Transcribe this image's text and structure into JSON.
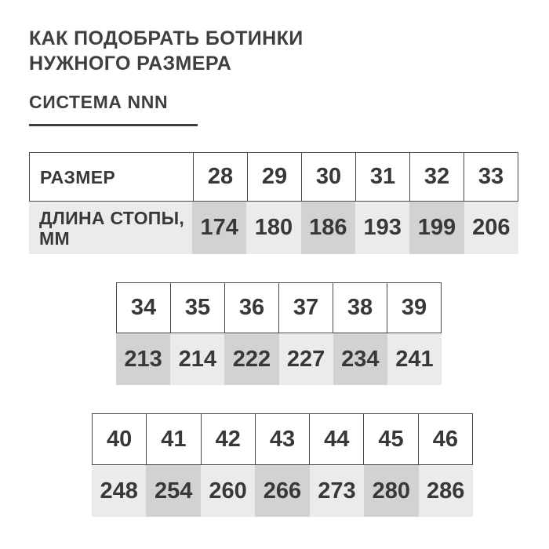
{
  "page": {
    "title_line1": "КАК ПОДОБРАТЬ БОТИНКИ",
    "title_line2": "НУЖНОГО РАЗМЕРА",
    "subtitle": "СИСТЕМА NNN"
  },
  "labels": {
    "size": "РАЗМЕР",
    "foot_length": "ДЛИНА СТОПЫ, ММ"
  },
  "tables": [
    {
      "sizes": [
        "28",
        "29",
        "30",
        "31",
        "32",
        "33"
      ],
      "lengths": [
        "174",
        "180",
        "186",
        "193",
        "199",
        "206"
      ]
    },
    {
      "sizes": [
        "34",
        "35",
        "36",
        "37",
        "38",
        "39"
      ],
      "lengths": [
        "213",
        "214",
        "222",
        "227",
        "234",
        "241"
      ]
    },
    {
      "sizes": [
        "40",
        "41",
        "42",
        "43",
        "44",
        "45",
        "46"
      ],
      "lengths": [
        "248",
        "254",
        "260",
        "266",
        "273",
        "280",
        "286"
      ]
    }
  ],
  "chart_data": {
    "type": "table",
    "title": "КАК ПОДОБРАТЬ БОТИНКИ НУЖНОГО РАЗМЕРА",
    "subtitle": "СИСТЕМА NNN",
    "columns": [
      "РАЗМЕР",
      "ДЛИНА СТОПЫ, ММ"
    ],
    "rows": [
      [
        28,
        174
      ],
      [
        29,
        180
      ],
      [
        30,
        186
      ],
      [
        31,
        193
      ],
      [
        32,
        199
      ],
      [
        33,
        206
      ],
      [
        34,
        213
      ],
      [
        35,
        214
      ],
      [
        36,
        222
      ],
      [
        37,
        227
      ],
      [
        38,
        234
      ],
      [
        39,
        241
      ],
      [
        40,
        248
      ],
      [
        41,
        254
      ],
      [
        42,
        260
      ],
      [
        43,
        266
      ],
      [
        44,
        273
      ],
      [
        45,
        280
      ],
      [
        46,
        286
      ]
    ],
    "highlighted_length_cells": [
      174,
      186,
      199,
      213,
      222,
      234,
      254,
      266,
      280
    ]
  },
  "colors": {
    "background": "#ffffff",
    "text": "#3b3b3b",
    "border": "#4a4a4a",
    "cell_light": "#ebebeb",
    "cell_dark": "#d2d2d2"
  }
}
